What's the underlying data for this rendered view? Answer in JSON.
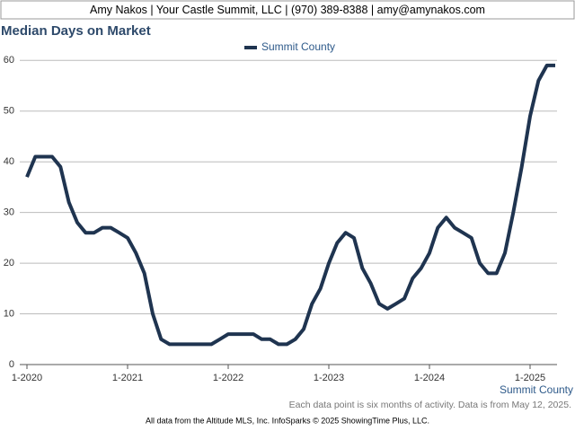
{
  "header": "Amy Nakos | Your Castle Summit, LLC | (970) 389-8388 | amy@amynakos.com",
  "chart_data": {
    "type": "line",
    "title": "Median Days on Market",
    "x_label": "Summit County",
    "categories": [
      "1-2020",
      null,
      null,
      null,
      null,
      null,
      null,
      null,
      null,
      null,
      null,
      null,
      "1-2021",
      null,
      null,
      null,
      null,
      null,
      null,
      null,
      null,
      null,
      null,
      null,
      "1-2022",
      null,
      null,
      null,
      null,
      null,
      null,
      null,
      null,
      null,
      null,
      null,
      "1-2023",
      null,
      null,
      null,
      null,
      null,
      null,
      null,
      null,
      null,
      null,
      null,
      "1-2024",
      null,
      null,
      null,
      null,
      null,
      null,
      null,
      null,
      null,
      null,
      null,
      "1-2025",
      null,
      null,
      null
    ],
    "series": [
      {
        "name": "Summit County",
        "color": "#1f3450",
        "values": [
          37,
          41,
          41,
          41,
          39,
          32,
          28,
          26,
          26,
          27,
          27,
          26,
          25,
          22,
          18,
          10,
          5,
          4,
          4,
          4,
          4,
          4,
          4,
          5,
          6,
          6,
          6,
          6,
          5,
          5,
          4,
          4,
          5,
          7,
          12,
          15,
          20,
          24,
          26,
          25,
          19,
          16,
          12,
          11,
          12,
          13,
          17,
          19,
          22,
          27,
          29,
          27,
          26,
          25,
          20,
          18,
          18,
          22,
          30,
          39,
          49,
          56,
          59,
          59
        ]
      }
    ],
    "ylim": [
      0,
      62
    ],
    "yticks": [
      0,
      10,
      20,
      30,
      40,
      50,
      60
    ],
    "grid": true,
    "legend": "top",
    "note": "Each data point is six months of activity. Data is from May 12, 2025."
  },
  "footer": "All data from the Altitude MLS, Inc. InfoSparks © 2025 ShowingTime Plus, LLC."
}
